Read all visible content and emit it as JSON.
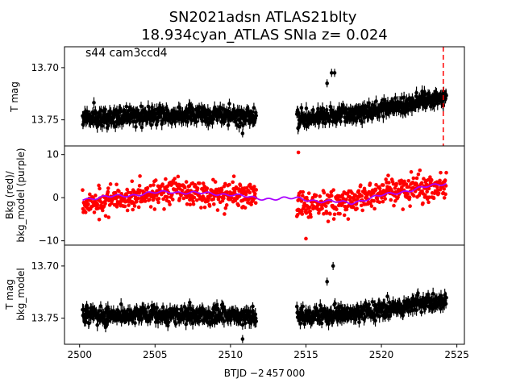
{
  "chart_data": {
    "type": "scatter",
    "title_line1": "SN2021adsn  ATLAS21blty",
    "title_line2": "18.934cyan_ATLAS SNIa z= 0.024",
    "annotation": "s44 cam3ccd4",
    "xlabel": "BTJD −2 457 000",
    "xlim": [
      2499.0,
      2525.5
    ],
    "x_ticks": [
      2500,
      2505,
      2510,
      2515,
      2520,
      2525
    ],
    "x_tick_labels": [
      "2500",
      "2505",
      "2510",
      "2515",
      "2520",
      "2525"
    ],
    "event_marker": {
      "x": 2524.1,
      "color": "#ff0000",
      "style": "dashed"
    },
    "segments": [
      {
        "x_start": 2500.2,
        "x_end": 2511.7
      },
      {
        "x_start": 2514.4,
        "x_end": 2524.3
      }
    ],
    "panels": [
      {
        "id": "top",
        "ylabel": "T mag",
        "ylim": [
          13.775,
          13.68
        ],
        "y_ticks": [
          13.7,
          13.75
        ],
        "y_tick_labels": [
          "13.70",
          "13.75"
        ],
        "series": [
          {
            "color": "#000000",
            "marker": "errorbar-dot",
            "values": [
              [
                2500.2,
                13.748
              ],
              [
                2502.0,
                13.747
              ],
              [
                2504.0,
                13.746
              ],
              [
                2506.0,
                13.745
              ],
              [
                2508.0,
                13.745
              ],
              [
                2510.0,
                13.746
              ],
              [
                2511.7,
                13.748
              ],
              [
                2514.4,
                13.748
              ],
              [
                2516.0,
                13.747
              ],
              [
                2518.0,
                13.744
              ],
              [
                2520.0,
                13.74
              ],
              [
                2522.0,
                13.734
              ],
              [
                2524.3,
                13.728
              ]
            ]
          }
        ]
      },
      {
        "id": "middle",
        "ylabel": "Bkg (red)/\nbkg_model (purple)",
        "ylim": [
          -11,
          12
        ],
        "y_ticks": [
          -10,
          0,
          10
        ],
        "y_tick_labels": [
          "−10",
          "0",
          "10"
        ],
        "series": [
          {
            "name": "Bkg",
            "color": "#ff0000",
            "marker": "dot",
            "values": [
              [
                2500.2,
                -1.5
              ],
              [
                2502.0,
                -0.5
              ],
              [
                2504.0,
                0.5
              ],
              [
                2506.0,
                1.5
              ],
              [
                2508.0,
                1.0
              ],
              [
                2510.0,
                1.0
              ],
              [
                2511.7,
                0.0
              ],
              [
                2514.4,
                -2.0
              ],
              [
                2516.0,
                -1.5
              ],
              [
                2518.0,
                -1.0
              ],
              [
                2520.0,
                1.5
              ],
              [
                2522.0,
                2.0
              ],
              [
                2524.3,
                3.0
              ]
            ]
          },
          {
            "name": "bkg_model",
            "color": "#aa00ff",
            "marker": "line",
            "values": [
              [
                2500.2,
                -0.3
              ],
              [
                2502.0,
                0.2
              ],
              [
                2504.0,
                0.8
              ],
              [
                2506.0,
                1.4
              ],
              [
                2508.0,
                1.0
              ],
              [
                2510.0,
                0.8
              ],
              [
                2511.7,
                -0.2
              ],
              [
                2514.4,
                -0.2
              ],
              [
                2516.0,
                -0.8
              ],
              [
                2518.0,
                -1.2
              ],
              [
                2520.0,
                0.5
              ],
              [
                2522.0,
                1.8
              ],
              [
                2524.3,
                3.4
              ]
            ]
          }
        ]
      },
      {
        "id": "bottom",
        "ylabel": "T mag\nbkg_model",
        "ylim": [
          13.775,
          13.68
        ],
        "y_ticks": [
          13.7,
          13.75
        ],
        "y_tick_labels": [
          "13.70",
          "13.75"
        ],
        "series": [
          {
            "color": "#000000",
            "marker": "errorbar-dot",
            "values": [
              [
                2500.2,
                13.748
              ],
              [
                2502.0,
                13.747
              ],
              [
                2504.0,
                13.747
              ],
              [
                2506.0,
                13.747
              ],
              [
                2508.0,
                13.747
              ],
              [
                2510.0,
                13.747
              ],
              [
                2511.7,
                13.748
              ],
              [
                2514.4,
                13.748
              ],
              [
                2516.0,
                13.747
              ],
              [
                2518.0,
                13.745
              ],
              [
                2520.0,
                13.742
              ],
              [
                2522.0,
                13.738
              ],
              [
                2524.3,
                13.733
              ]
            ]
          }
        ]
      }
    ],
    "outliers": {
      "top": [
        [
          2516.7,
          13.705
        ],
        [
          2516.9,
          13.705
        ],
        [
          2516.4,
          13.715
        ],
        [
          2507.3,
          13.735
        ],
        [
          2510.8,
          13.763
        ]
      ],
      "middle": [
        [
          2514.5,
          10.5
        ],
        [
          2515.0,
          -9.5
        ]
      ],
      "bottom": [
        [
          2516.8,
          13.7
        ],
        [
          2516.4,
          13.715
        ],
        [
          2507.3,
          13.735
        ],
        [
          2510.8,
          13.77
        ]
      ]
    }
  }
}
